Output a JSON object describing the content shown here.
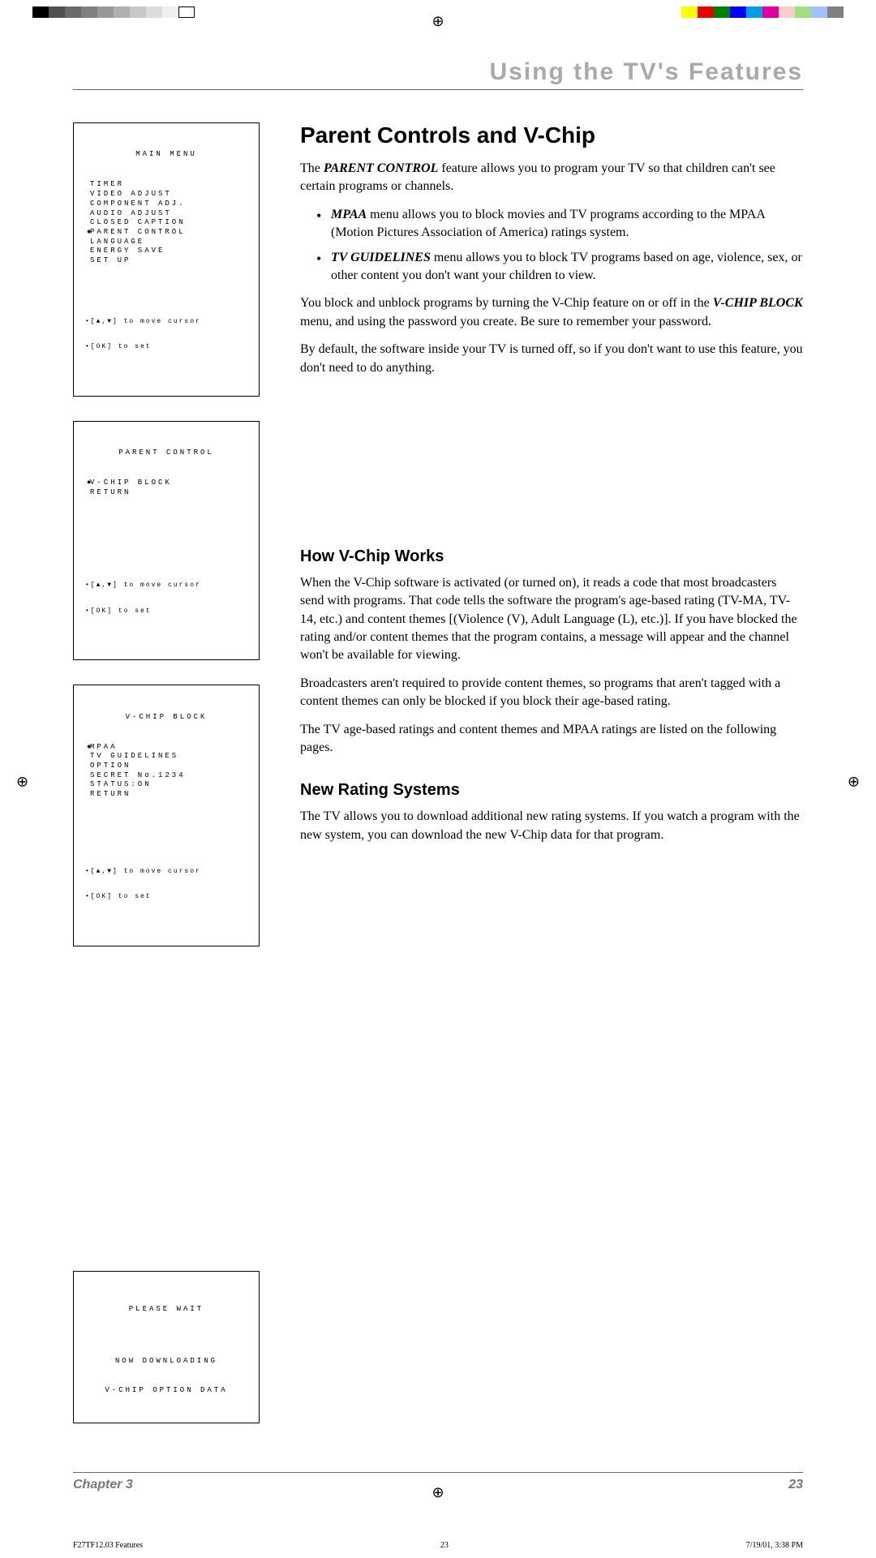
{
  "colorBar": {
    "left": [
      "#000000",
      "#505050",
      "#6a6a6a",
      "#808080",
      "#999999",
      "#b0b0b0",
      "#c8c8c8",
      "#dcdcdc",
      "#f0f0f0",
      "#ffffff"
    ],
    "right": [
      "#ffff00",
      "#e60000",
      "#008000",
      "#0000ff",
      "#00a0e0",
      "#e000a0",
      "#ffcccc",
      "#a0e080",
      "#a0c0ff",
      "#808080"
    ]
  },
  "registration": "⊕",
  "header": "Using the TV's Features",
  "menus": {
    "main": {
      "title": "MAIN MENU",
      "items": [
        "TIMER",
        "VIDEO ADJUST",
        "COMPONENT ADJ.",
        "AUDIO ADJUST",
        "CLOSED CAPTION",
        "PARENT CONTROL",
        "LANGUAGE",
        "ENERGY SAVE",
        "SET UP"
      ],
      "selected": "PARENT CONTROL",
      "help1": "•[▲,▼] to move cursor",
      "help2": "•[OK] to set"
    },
    "parent": {
      "title": "PARENT CONTROL",
      "items": [
        "V-CHIP BLOCK",
        "RETURN"
      ],
      "selected": "V-CHIP BLOCK",
      "help1": "•[▲,▼] to move cursor",
      "help2": "•[OK] to set"
    },
    "vchip": {
      "title": "V-CHIP BLOCK",
      "items": [
        "MPAA",
        "TV GUIDELINES",
        "OPTION",
        "SECRET No.1234",
        "STATUS:ON",
        "RETURN"
      ],
      "selected": "MPAA",
      "help1": "•[▲,▼] to move cursor",
      "help2": "•[OK] to set"
    },
    "download": {
      "line1": "PLEASE WAIT",
      "line2": "NOW DOWNLOADING",
      "line3": "V-CHIP OPTION DATA"
    }
  },
  "body": {
    "h1": "Parent Controls and V-Chip",
    "intro_prefix": "The ",
    "intro_em": "PARENT CONTROL",
    "intro_suffix": " feature allows you to program your TV so that children can't see certain programs or channels.",
    "b1_em": "MPAA",
    "b1_txt": " menu allows you to block movies and TV programs according to the MPAA (Motion Pictures Association of America) ratings system.",
    "b2_em": "TV GUIDELINES",
    "b2_txt": " menu allows you to block TV programs based on age, violence, sex, or other content you don't want your children to view.",
    "p2_a": "You block and unblock programs by turning the V-Chip feature on or off in the ",
    "p2_em": "V-CHIP BLOCK",
    "p2_b": " menu, and using the password you create. Be sure to remember your password.",
    "p3": "By default, the software inside your TV is turned off, so if you don't want to use this feature, you don't need to do anything.",
    "h2a": "How V-Chip Works",
    "pa1": "When the V-Chip software is activated (or turned on), it reads a code that most broadcasters send with programs. That code tells the software the program's age-based rating (TV-MA, TV-14, etc.) and content themes [(Violence (V), Adult Language (L), etc.)]. If you have blocked the rating and/or content themes that the program contains, a message will appear and the channel won't be available for viewing.",
    "pa2": "Broadcasters aren't required to provide content themes, so programs that aren't tagged with a content themes can only be blocked if you block their age-based rating.",
    "pa3": "The TV age-based ratings and content themes and MPAA ratings are  listed on the following pages.",
    "h2b": "New Rating Systems",
    "pb1": "The TV allows you to download additional new rating systems. If you watch a program with the new system, you can download the new V-Chip data for that program."
  },
  "footer": {
    "chapter": "Chapter 3",
    "page": "23"
  },
  "meta": {
    "file": "F27TF12.03 Features",
    "num": "23",
    "date": "7/19/01, 3:38 PM"
  }
}
